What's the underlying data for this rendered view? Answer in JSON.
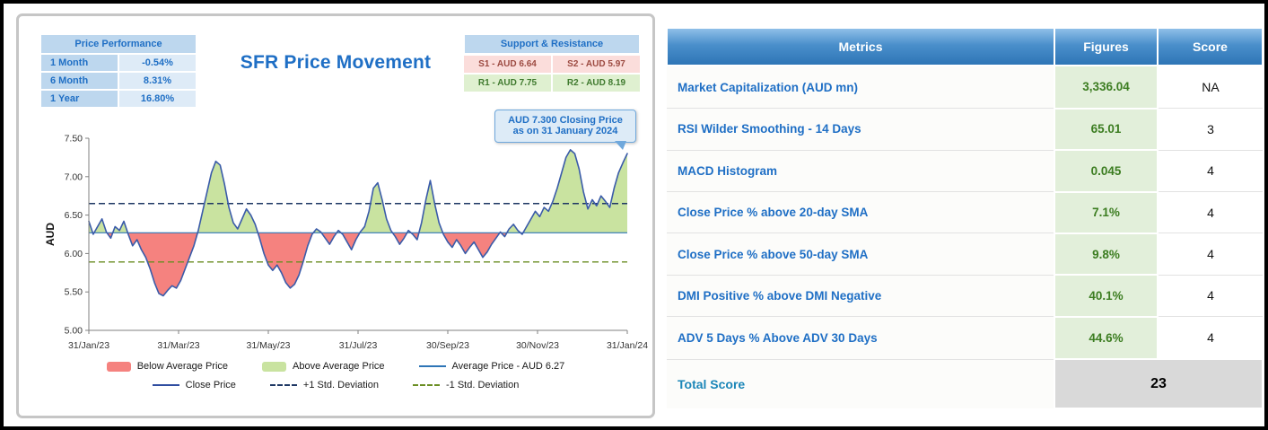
{
  "chart_panel": {
    "title": "SFR Price Movement",
    "price_performance": {
      "title": "Price Performance",
      "rows": [
        {
          "label": "1 Month",
          "value": "-0.54%"
        },
        {
          "label": "6 Month",
          "value": "8.31%"
        },
        {
          "label": "1 Year",
          "value": "16.80%"
        }
      ]
    },
    "support_resistance": {
      "title": "Support & Resistance",
      "s1": "S1 - AUD 6.64",
      "s2": "S2 - AUD 5.97",
      "r1": "R1 - AUD 7.75",
      "r2": "R2 - AUD 8.19"
    },
    "callout": {
      "line1": "AUD 7.300 Closing Price",
      "line2": "as on 31 January 2024"
    }
  },
  "chart_data": {
    "type": "line",
    "title": "SFR Price Movement",
    "ylabel": "AUD",
    "ylim": [
      5.0,
      7.5
    ],
    "yticks": [
      "5.00",
      "5.50",
      "6.00",
      "6.50",
      "7.00",
      "7.50"
    ],
    "xticklabels": [
      "31/Jan/23",
      "31/Mar/23",
      "31/May/23",
      "31/Jul/23",
      "30/Sep/23",
      "30/Nov/23",
      "31/Jan/24"
    ],
    "average_price": 6.27,
    "plus_one_std": 6.65,
    "minus_one_std": 5.89,
    "last_close": 7.3,
    "close_price_series": [
      6.42,
      6.25,
      6.35,
      6.45,
      6.28,
      6.2,
      6.35,
      6.3,
      6.42,
      6.25,
      6.1,
      6.18,
      6.05,
      5.95,
      5.8,
      5.62,
      5.48,
      5.45,
      5.52,
      5.58,
      5.55,
      5.65,
      5.8,
      5.95,
      6.1,
      6.3,
      6.55,
      6.8,
      7.05,
      7.2,
      7.15,
      6.9,
      6.6,
      6.4,
      6.32,
      6.45,
      6.58,
      6.5,
      6.38,
      6.2,
      6.0,
      5.85,
      5.78,
      5.85,
      5.75,
      5.62,
      5.55,
      5.6,
      5.72,
      5.9,
      6.1,
      6.25,
      6.32,
      6.28,
      6.2,
      6.12,
      6.22,
      6.3,
      6.25,
      6.15,
      6.05,
      6.18,
      6.28,
      6.35,
      6.55,
      6.85,
      6.92,
      6.7,
      6.45,
      6.3,
      6.22,
      6.12,
      6.2,
      6.3,
      6.25,
      6.18,
      6.4,
      6.7,
      6.95,
      6.65,
      6.4,
      6.25,
      6.15,
      6.08,
      6.18,
      6.1,
      6.0,
      6.08,
      6.15,
      6.05,
      5.95,
      6.02,
      6.12,
      6.2,
      6.28,
      6.22,
      6.32,
      6.38,
      6.3,
      6.25,
      6.35,
      6.45,
      6.55,
      6.48,
      6.6,
      6.55,
      6.68,
      6.85,
      7.05,
      7.25,
      7.35,
      7.3,
      7.1,
      6.8,
      6.58,
      6.7,
      6.62,
      6.75,
      6.68,
      6.6,
      6.85,
      7.05,
      7.18,
      7.3
    ],
    "legend": [
      {
        "label": "Below Average Price",
        "swatch": "red-area"
      },
      {
        "label": "Above Average Price",
        "swatch": "green-area"
      },
      {
        "label": "Average Price - AUD 6.27",
        "swatch": "blue-line"
      },
      {
        "label": "Close Price",
        "swatch": "navy-line"
      },
      {
        "label": "+1 Std. Deviation",
        "swatch": "navy-dash"
      },
      {
        "label": "-1 Std. Deviation",
        "swatch": "olive-dash"
      }
    ],
    "colors": {
      "close_line": "#3A5BA9",
      "average_line": "#2E75B6",
      "above_fill": "#C9E3A0",
      "below_fill": "#F5827F",
      "plus_std": "#1F3864",
      "minus_std": "#6B8E23",
      "accent_blue": "#1F6FC5",
      "figure_green": "#3C7D21"
    }
  },
  "metrics_table": {
    "headers": [
      "Metrics",
      "Figures",
      "Score"
    ],
    "rows": [
      {
        "metric": "Market Capitalization (AUD mn)",
        "figure": "3,336.04",
        "score": "NA"
      },
      {
        "metric": "RSI Wilder Smoothing - 14 Days",
        "figure": "65.01",
        "score": "3"
      },
      {
        "metric": "MACD Histogram",
        "figure": "0.045",
        "score": "4"
      },
      {
        "metric": "Close Price % above 20-day SMA",
        "figure": "7.1%",
        "score": "4"
      },
      {
        "metric": "Close Price % above 50-day SMA",
        "figure": "9.8%",
        "score": "4"
      },
      {
        "metric": "DMI Positive % above DMI Negative",
        "figure": "40.1%",
        "score": "4"
      },
      {
        "metric": "ADV 5 Days % Above ADV 30 Days",
        "figure": "44.6%",
        "score": "4"
      }
    ],
    "total": {
      "label": "Total Score",
      "value": "23"
    }
  }
}
